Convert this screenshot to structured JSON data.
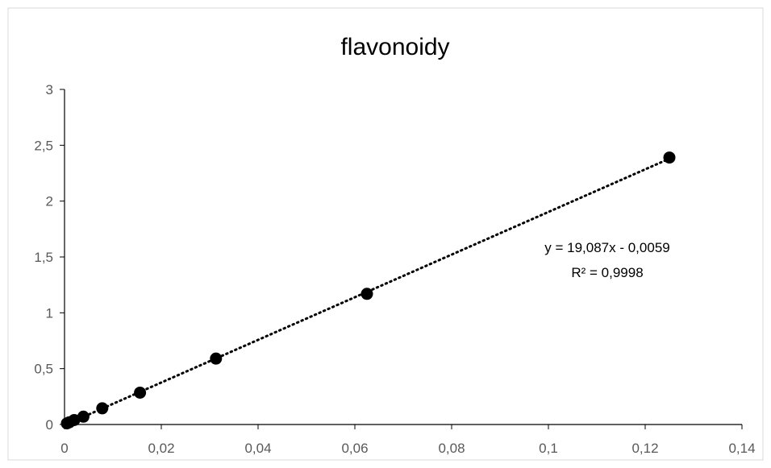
{
  "chart_data": {
    "type": "scatter",
    "title": "flavonoidy",
    "xlabel": "",
    "ylabel": "",
    "xlim": [
      0,
      0.14
    ],
    "ylim": [
      0,
      3
    ],
    "x_ticks": [
      0,
      0.02,
      0.04,
      0.06,
      0.08,
      0.1,
      0.12,
      0.14
    ],
    "x_tick_labels": [
      "0",
      "0,02",
      "0,04",
      "0,06",
      "0,08",
      "0,1",
      "0,12",
      "0,14"
    ],
    "y_ticks": [
      0,
      0.5,
      1,
      1.5,
      2,
      2.5,
      3
    ],
    "y_tick_labels": [
      "0",
      "0,5",
      "1",
      "1,5",
      "2",
      "2,5",
      "3"
    ],
    "grid": false,
    "legend": "none",
    "series": [
      {
        "x": [
          0.0005,
          0.001,
          0.002,
          0.0039,
          0.0078,
          0.0156,
          0.0313,
          0.0625,
          0.125
        ],
        "y": [
          0.01,
          0.02,
          0.04,
          0.07,
          0.145,
          0.285,
          0.59,
          1.17,
          2.39
        ],
        "marker": "circle",
        "color": "#000000"
      }
    ],
    "trendline": {
      "type": "linear",
      "slope": 19.087,
      "intercept": -0.0059,
      "style": "dotted",
      "color": "#000000",
      "equation": "y = 19,087x - 0,0059",
      "r_squared": "R² = 0,9998"
    }
  }
}
